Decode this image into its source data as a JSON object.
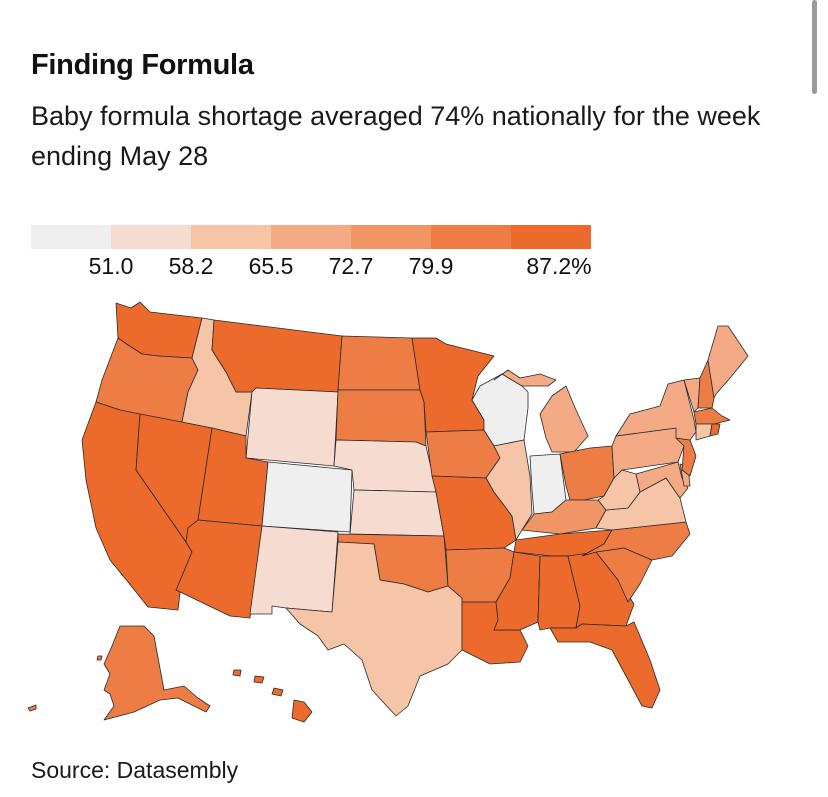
{
  "title": "Finding Formula",
  "subtitle": "Baby formula shortage averaged 74% nationally for the week ending May 28",
  "source": "Source: Datasembly",
  "legend": {
    "colors": [
      "#efefef",
      "#f6dcd0",
      "#f6c4a7",
      "#f4ab85",
      "#f19466",
      "#ee7d45",
      "#eb6a2c"
    ],
    "ticks": [
      "51.0",
      "58.2",
      "65.5",
      "72.7",
      "79.9",
      "87.2%"
    ]
  },
  "map_data": {
    "metric": "Baby formula out-of-stock rate (%)",
    "states": [
      {
        "id": "WA",
        "name": "Washington",
        "bin": 6
      },
      {
        "id": "OR",
        "name": "Oregon",
        "bin": 5
      },
      {
        "id": "CA",
        "name": "California",
        "bin": 6
      },
      {
        "id": "ID",
        "name": "Idaho",
        "bin": 2
      },
      {
        "id": "NV",
        "name": "Nevada",
        "bin": 6
      },
      {
        "id": "MT",
        "name": "Montana",
        "bin": 6
      },
      {
        "id": "WY",
        "name": "Wyoming",
        "bin": 1
      },
      {
        "id": "UT",
        "name": "Utah",
        "bin": 6
      },
      {
        "id": "AZ",
        "name": "Arizona",
        "bin": 6
      },
      {
        "id": "CO",
        "name": "Colorado",
        "bin": 0
      },
      {
        "id": "NM",
        "name": "New Mexico",
        "bin": 1
      },
      {
        "id": "ND",
        "name": "North Dakota",
        "bin": 5
      },
      {
        "id": "SD",
        "name": "South Dakota",
        "bin": 5
      },
      {
        "id": "NE",
        "name": "Nebraska",
        "bin": 1
      },
      {
        "id": "KS",
        "name": "Kansas",
        "bin": 1
      },
      {
        "id": "OK",
        "name": "Oklahoma",
        "bin": 5
      },
      {
        "id": "TX",
        "name": "Texas",
        "bin": 2
      },
      {
        "id": "MN",
        "name": "Minnesota",
        "bin": 6
      },
      {
        "id": "IA",
        "name": "Iowa",
        "bin": 5
      },
      {
        "id": "MO",
        "name": "Missouri",
        "bin": 6
      },
      {
        "id": "AR",
        "name": "Arkansas",
        "bin": 5
      },
      {
        "id": "LA",
        "name": "Louisiana",
        "bin": 6
      },
      {
        "id": "WI",
        "name": "Wisconsin",
        "bin": 0
      },
      {
        "id": "IL",
        "name": "Illinois",
        "bin": 2
      },
      {
        "id": "MI",
        "name": "Michigan",
        "bin": 3
      },
      {
        "id": "IN",
        "name": "Indiana",
        "bin": 0
      },
      {
        "id": "OH",
        "name": "Ohio",
        "bin": 5
      },
      {
        "id": "KY",
        "name": "Kentucky",
        "bin": 4
      },
      {
        "id": "TN",
        "name": "Tennessee",
        "bin": 6
      },
      {
        "id": "MS",
        "name": "Mississippi",
        "bin": 6
      },
      {
        "id": "AL",
        "name": "Alabama",
        "bin": 6
      },
      {
        "id": "GA",
        "name": "Georgia",
        "bin": 6
      },
      {
        "id": "FL",
        "name": "Florida",
        "bin": 6
      },
      {
        "id": "SC",
        "name": "South Carolina",
        "bin": 5
      },
      {
        "id": "NC",
        "name": "North Carolina",
        "bin": 5
      },
      {
        "id": "VA",
        "name": "Virginia",
        "bin": 2
      },
      {
        "id": "WV",
        "name": "West Virginia",
        "bin": 2
      },
      {
        "id": "PA",
        "name": "Pennsylvania",
        "bin": 3
      },
      {
        "id": "NY",
        "name": "New York",
        "bin": 3
      },
      {
        "id": "NJ",
        "name": "New Jersey",
        "bin": 5
      },
      {
        "id": "DE",
        "name": "Delaware",
        "bin": 3
      },
      {
        "id": "MD",
        "name": "Maryland",
        "bin": 3
      },
      {
        "id": "VT",
        "name": "Vermont",
        "bin": 3
      },
      {
        "id": "NH",
        "name": "New Hampshire",
        "bin": 5
      },
      {
        "id": "ME",
        "name": "Maine",
        "bin": 3
      },
      {
        "id": "MA",
        "name": "Massachusetts",
        "bin": 5
      },
      {
        "id": "CT",
        "name": "Connecticut",
        "bin": 2
      },
      {
        "id": "RI",
        "name": "Rhode Island",
        "bin": 6
      },
      {
        "id": "AK",
        "name": "Alaska",
        "bin": 5
      },
      {
        "id": "HI",
        "name": "Hawaii",
        "bin": 6
      }
    ]
  }
}
